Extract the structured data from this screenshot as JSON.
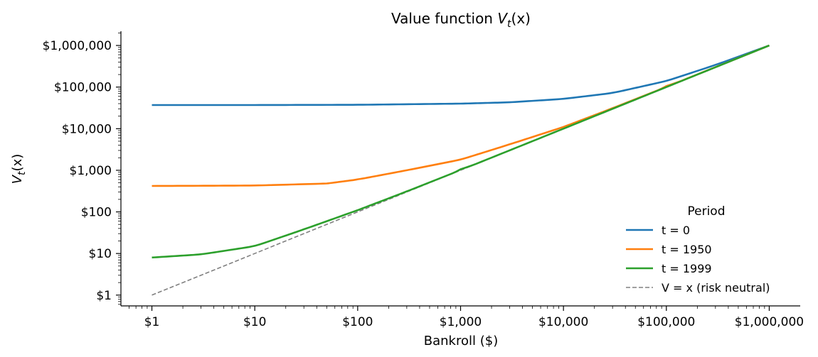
{
  "chart_data": {
    "type": "line",
    "title_text": "Value function",
    "title_math": "V",
    "title_sub": "t",
    "title_arg": "(x)",
    "xlabel": "Bankroll ($)",
    "ylabel_math": "V",
    "ylabel_sub": "t",
    "ylabel_arg": "(x)",
    "x_scale": "log",
    "y_scale": "log",
    "xlim": [
      0.5,
      2000000
    ],
    "ylim": [
      0.55,
      2200000
    ],
    "x_ticks": [
      1,
      10,
      100,
      1000,
      10000,
      100000,
      1000000
    ],
    "x_tick_labels": [
      "$1",
      "$10",
      "$100",
      "$1,000",
      "$10,000",
      "$100,000",
      "$1,000,000"
    ],
    "y_ticks": [
      1,
      10,
      100,
      1000,
      10000,
      100000,
      1000000
    ],
    "y_tick_labels": [
      "$1",
      "$10",
      "$100",
      "$1,000",
      "$10,000",
      "$100,000",
      "$1,000,000"
    ],
    "grid": false,
    "legend": {
      "title": "Period",
      "placement": "lower-right",
      "entries": [
        "t = 0",
        "t = 1950",
        "t = 1999",
        "V = x  (risk neutral)"
      ]
    },
    "series": [
      {
        "name": "t = 0",
        "color": "#1f77b4",
        "style": "solid",
        "x": [
          1,
          10,
          100,
          1000,
          3000,
          10000,
          30000,
          100000,
          300000,
          1000000
        ],
        "y": [
          37000,
          37000,
          37500,
          40000,
          43000,
          52000,
          72000,
          140000,
          340000,
          1000000
        ]
      },
      {
        "name": "t = 1950",
        "color": "#ff7f0e",
        "style": "solid",
        "x": [
          1,
          10,
          50,
          100,
          300,
          1000,
          3000,
          10000,
          30000,
          100000,
          1000000
        ],
        "y": [
          420,
          430,
          480,
          600,
          1000,
          1800,
          4200,
          11000,
          31000,
          101000,
          1000000
        ]
      },
      {
        "name": "t = 1999",
        "color": "#2ca02c",
        "style": "solid",
        "x": [
          1,
          3,
          10,
          30,
          100,
          300,
          1000,
          10000,
          100000,
          1000000
        ],
        "y": [
          8,
          9.5,
          15,
          38,
          110,
          310,
          1010,
          10000,
          100000,
          1000000
        ]
      },
      {
        "name": "V = x  (risk neutral)",
        "color": "#808080",
        "style": "dashed",
        "x": [
          1,
          1000000
        ],
        "y": [
          1,
          1000000
        ]
      }
    ]
  }
}
